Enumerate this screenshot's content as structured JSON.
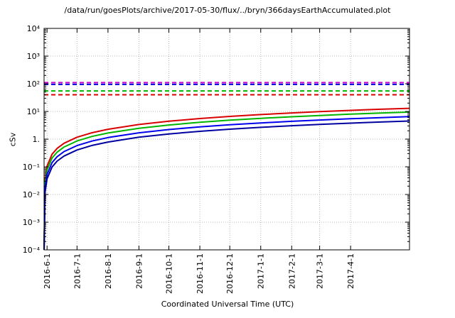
{
  "page": {
    "background": "#ffffff"
  },
  "chart_data": {
    "type": "line",
    "title": "/data/run/goesPlots/archive/2017-05-30/flux/../bryn/366daysEarthAccumulated.plot",
    "xlabel": "Coordinated Universal Time (UTC)",
    "ylabel": "cSv",
    "y_scale": "log10",
    "ylim": [
      0.0001,
      10000
    ],
    "x_start_date": "2016-05-29",
    "x_end_date": "2017-05-30",
    "x_span_days": 366,
    "grid": true,
    "legend": "none",
    "y_ticks": [
      {
        "value": 10000,
        "label": "10⁴"
      },
      {
        "value": 1000,
        "label": "10³"
      },
      {
        "value": 100,
        "label": "10²"
      },
      {
        "value": 10,
        "label": "10¹"
      },
      {
        "value": 1,
        "label": "1."
      },
      {
        "value": 0.1,
        "label": "10⁻¹"
      },
      {
        "value": 0.01,
        "label": "10⁻²"
      },
      {
        "value": 0.001,
        "label": "10⁻³"
      },
      {
        "value": 0.0001,
        "label": "10⁻⁴"
      }
    ],
    "x_ticks": [
      {
        "day": 3,
        "label": "2016-6-1"
      },
      {
        "day": 33,
        "label": "2016-7-1"
      },
      {
        "day": 64,
        "label": "2016-8-1"
      },
      {
        "day": 95,
        "label": "2016-9-1"
      },
      {
        "day": 125,
        "label": "2016-10-1"
      },
      {
        "day": 156,
        "label": "2016-11-1"
      },
      {
        "day": 186,
        "label": "2016-12-1"
      },
      {
        "day": 217,
        "label": "2017-1-1"
      },
      {
        "day": 248,
        "label": "2017-2-1"
      },
      {
        "day": 276,
        "label": "2017-3-1"
      },
      {
        "day": 307,
        "label": "2017-4-1"
      }
    ],
    "threshold_lines": [
      {
        "name": "magenta-limit",
        "color": "#c800c8",
        "style": "dashed",
        "value": 110
      },
      {
        "name": "blue-limit",
        "color": "#0000e0",
        "style": "dashed",
        "value": 95
      },
      {
        "name": "green-limit",
        "color": "#00b400",
        "style": "dashed",
        "value": 55
      },
      {
        "name": "red-limit",
        "color": "#d80000",
        "style": "dashed",
        "value": 40
      }
    ],
    "series": [
      {
        "name": "accumulated-red",
        "color": "#d80000",
        "style": "solid",
        "final_value": 13,
        "points": [
          [
            0.003,
            0.0001
          ],
          [
            1,
            0.036
          ],
          [
            3,
            0.107
          ],
          [
            8,
            0.284
          ],
          [
            13,
            0.462
          ],
          [
            20,
            0.71
          ],
          [
            33,
            1.17
          ],
          [
            48,
            1.7
          ],
          [
            64,
            2.27
          ],
          [
            95,
            3.37
          ],
          [
            125,
            4.44
          ],
          [
            156,
            5.54
          ],
          [
            186,
            6.61
          ],
          [
            217,
            7.71
          ],
          [
            248,
            8.81
          ],
          [
            276,
            9.8
          ],
          [
            307,
            10.9
          ],
          [
            337,
            12.0
          ],
          [
            366,
            13
          ]
        ]
      },
      {
        "name": "accumulated-green",
        "color": "#00b400",
        "style": "solid",
        "final_value": 9.5,
        "points": [
          [
            0.004,
            0.0001
          ],
          [
            1,
            0.026
          ],
          [
            3,
            0.078
          ],
          [
            8,
            0.208
          ],
          [
            13,
            0.337
          ],
          [
            20,
            0.519
          ],
          [
            33,
            0.857
          ],
          [
            48,
            1.25
          ],
          [
            64,
            1.66
          ],
          [
            95,
            2.47
          ],
          [
            125,
            3.24
          ],
          [
            156,
            4.05
          ],
          [
            186,
            4.83
          ],
          [
            217,
            5.63
          ],
          [
            248,
            6.44
          ],
          [
            276,
            7.16
          ],
          [
            307,
            7.97
          ],
          [
            337,
            8.75
          ],
          [
            366,
            9.5
          ]
        ]
      },
      {
        "name": "accumulated-blue",
        "color": "#0000ee",
        "style": "solid",
        "final_value": 6.5,
        "points": [
          [
            0.006,
            0.0001
          ],
          [
            1,
            0.018
          ],
          [
            3,
            0.053
          ],
          [
            8,
            0.142
          ],
          [
            13,
            0.231
          ],
          [
            20,
            0.355
          ],
          [
            33,
            0.586
          ],
          [
            48,
            0.852
          ],
          [
            64,
            1.14
          ],
          [
            95,
            1.69
          ],
          [
            125,
            2.22
          ],
          [
            156,
            2.77
          ],
          [
            186,
            3.3
          ],
          [
            217,
            3.85
          ],
          [
            248,
            4.4
          ],
          [
            276,
            4.9
          ],
          [
            307,
            5.45
          ],
          [
            337,
            5.99
          ],
          [
            366,
            6.5
          ]
        ]
      },
      {
        "name": "accumulated-navy",
        "color": "#0000a0",
        "style": "solid",
        "final_value": 4.5,
        "points": [
          [
            0.008,
            0.0001
          ],
          [
            1,
            0.012
          ],
          [
            3,
            0.037
          ],
          [
            8,
            0.098
          ],
          [
            13,
            0.16
          ],
          [
            20,
            0.246
          ],
          [
            33,
            0.406
          ],
          [
            48,
            0.59
          ],
          [
            64,
            0.787
          ],
          [
            95,
            1.17
          ],
          [
            125,
            1.54
          ],
          [
            156,
            1.92
          ],
          [
            186,
            2.29
          ],
          [
            217,
            2.67
          ],
          [
            248,
            3.05
          ],
          [
            276,
            3.39
          ],
          [
            307,
            3.77
          ],
          [
            337,
            4.14
          ],
          [
            366,
            4.5
          ]
        ]
      }
    ]
  }
}
